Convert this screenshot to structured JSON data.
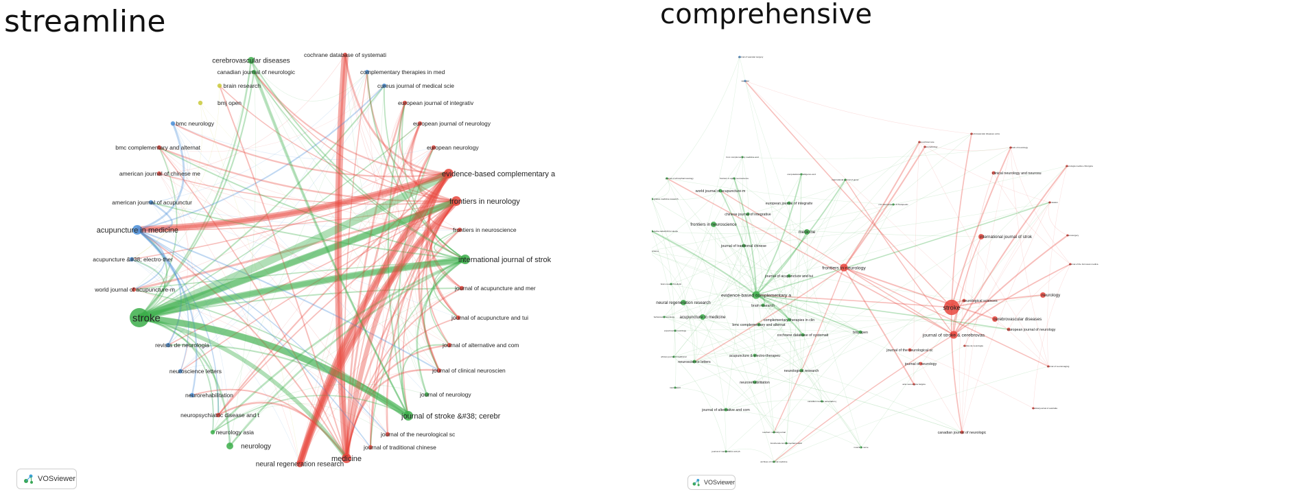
{
  "panels": [
    {
      "title": "streamline",
      "logo_text": "VOSviewer",
      "nodes": [
        {
          "label": "stroke",
          "cluster": "green",
          "size": "xl"
        },
        {
          "label": "cochrane database of systemati",
          "cluster": "red",
          "size": "s"
        },
        {
          "label": "complementary therapies in med",
          "cluster": "blue",
          "size": "s"
        },
        {
          "label": "cureus journal of medical scie",
          "cluster": "blue",
          "size": "s"
        },
        {
          "label": "european journal of integrativ",
          "cluster": "red",
          "size": "s"
        },
        {
          "label": "european journal of neurology",
          "cluster": "red",
          "size": "s"
        },
        {
          "label": "european neurology",
          "cluster": "red",
          "size": "s"
        },
        {
          "label": "evidence-based complementary a",
          "cluster": "red",
          "size": "l"
        },
        {
          "label": "frontiers in neurology",
          "cluster": "red",
          "size": "l"
        },
        {
          "label": "frontiers in neuroscience",
          "cluster": "red",
          "size": "s"
        },
        {
          "label": "international journal of strok",
          "cluster": "green",
          "size": "l"
        },
        {
          "label": "journal of acupuncture and mer",
          "cluster": "red",
          "size": "s"
        },
        {
          "label": "journal of acupuncture and tui",
          "cluster": "red",
          "size": "s"
        },
        {
          "label": "journal of alternative and com",
          "cluster": "red",
          "size": "s"
        },
        {
          "label": "journal of clinical neuroscien",
          "cluster": "red",
          "size": "s"
        },
        {
          "label": "journal of neurology",
          "cluster": "green",
          "size": "s"
        },
        {
          "label": "journal of stroke &#38; cerebr",
          "cluster": "green",
          "size": "l"
        },
        {
          "label": "journal of the neurological sc",
          "cluster": "red",
          "size": "s"
        },
        {
          "label": "journal of traditional chinese",
          "cluster": "red",
          "size": "s"
        },
        {
          "label": "medicine",
          "cluster": "red",
          "size": "l"
        },
        {
          "label": "neural regeneration research",
          "cluster": "red",
          "size": "m"
        },
        {
          "label": "neurology",
          "cluster": "green",
          "size": "m"
        },
        {
          "label": "neurology asia",
          "cluster": "green",
          "size": "s"
        },
        {
          "label": "neuropsychiatric disease and t",
          "cluster": "red",
          "size": "s"
        },
        {
          "label": "neurorehabilitation",
          "cluster": "blue",
          "size": "s"
        },
        {
          "label": "neuroscience letters",
          "cluster": "blue",
          "size": "s"
        },
        {
          "label": "revista de neurologia",
          "cluster": "blue",
          "size": "s"
        },
        {
          "label": "world journal of acupuncture-m",
          "cluster": "red",
          "size": "s"
        },
        {
          "label": "acupuncture &#38; electro-ther",
          "cluster": "blue",
          "size": "s"
        },
        {
          "label": "acupuncture in medicine",
          "cluster": "blue",
          "size": "l"
        },
        {
          "label": "american journal of acupunctur",
          "cluster": "blue",
          "size": "s"
        },
        {
          "label": "american journal of chinese me",
          "cluster": "red",
          "size": "s"
        },
        {
          "label": "bmc complementary and alternat",
          "cluster": "red",
          "size": "s"
        },
        {
          "label": "bmc neurology",
          "cluster": "blue",
          "size": "s"
        },
        {
          "label": "bmj open",
          "cluster": "yellow",
          "size": "s"
        },
        {
          "label": "brain research",
          "cluster": "yellow",
          "size": "s"
        },
        {
          "label": "canadian journal of neurologic",
          "cluster": "green",
          "size": "s"
        },
        {
          "label": "cerebrovascular diseases",
          "cluster": "green",
          "size": "m"
        }
      ]
    },
    {
      "title": "comprehensive",
      "logo_text": "VOSviewer",
      "nodes": [
        {
          "label": "journal of vascular surgery",
          "cluster": "blue",
          "size": "xs"
        },
        {
          "label": "vascular",
          "cluster": "blue",
          "size": "xs"
        },
        {
          "label": "stroke",
          "cluster": "red",
          "size": "xl"
        },
        {
          "label": "frontiers in neurology",
          "cluster": "red",
          "size": "l"
        },
        {
          "label": "international journal of strok",
          "cluster": "red",
          "size": "m"
        },
        {
          "label": "journal of stroke & cerebrovas",
          "cluster": "red",
          "size": "l"
        },
        {
          "label": "cerebrovascular diseases",
          "cluster": "red",
          "size": "m"
        },
        {
          "label": "neurology",
          "cluster": "red",
          "size": "m"
        },
        {
          "label": "clinical neurology and neurosu",
          "cluster": "red",
          "size": "s"
        },
        {
          "label": "european journal of neurology",
          "cluster": "red",
          "size": "s"
        },
        {
          "label": "journal of the neurological sc",
          "cluster": "red",
          "size": "s"
        },
        {
          "label": "journal of neurology",
          "cluster": "red",
          "size": "s"
        },
        {
          "label": "canadian journal of neurologic",
          "cluster": "red",
          "size": "s"
        },
        {
          "label": "neurological sciences",
          "cluster": "red",
          "size": "s"
        },
        {
          "label": "annals of neurology",
          "cluster": "red",
          "size": "xs"
        },
        {
          "label": "neurologia medico-chirurgica",
          "cluster": "red",
          "size": "xs"
        },
        {
          "label": "neurosurgery",
          "cluster": "red",
          "size": "xs"
        },
        {
          "label": "circulation",
          "cluster": "red",
          "size": "xs"
        },
        {
          "label": "cerebrovascular diseases extra",
          "cluster": "red",
          "size": "xs"
        },
        {
          "label": "neurocritical care",
          "cluster": "red",
          "size": "xs"
        },
        {
          "label": "neuroradiology",
          "cluster": "red",
          "size": "xs"
        },
        {
          "label": "journal of neuroimaging",
          "cluster": "red",
          "size": "xs"
        },
        {
          "label": "journal of the formosan medica",
          "cluster": "red",
          "size": "xs"
        },
        {
          "label": "medical journal of australia",
          "cluster": "red",
          "size": "xs"
        },
        {
          "label": "acta neurologica belgica",
          "cluster": "red",
          "size": "xs"
        },
        {
          "label": "revista de neurologia",
          "cluster": "red",
          "size": "xs"
        },
        {
          "label": "medicine",
          "cluster": "green",
          "size": "m"
        },
        {
          "label": "evidence-based complementary a",
          "cluster": "green",
          "size": "l"
        },
        {
          "label": "acupuncture in medicine",
          "cluster": "green",
          "size": "m"
        },
        {
          "label": "neural regeneration research",
          "cluster": "green",
          "size": "m"
        },
        {
          "label": "frontiers in neuroscience",
          "cluster": "green",
          "size": "m"
        },
        {
          "label": "journal of traditional chinese",
          "cluster": "green",
          "size": "s"
        },
        {
          "label": "chinese journal of integrative",
          "cluster": "green",
          "size": "s"
        },
        {
          "label": "european journal of integrativ",
          "cluster": "green",
          "size": "s"
        },
        {
          "label": "world journal of acupuncture-m",
          "cluster": "green",
          "size": "s"
        },
        {
          "label": "journal of acupuncture and tui",
          "cluster": "green",
          "size": "s"
        },
        {
          "label": "complementary therapies in clin",
          "cluster": "green",
          "size": "s"
        },
        {
          "label": "bmc complementary and alternat",
          "cluster": "green",
          "size": "s"
        },
        {
          "label": "cochrane database of systemati",
          "cluster": "green",
          "size": "s"
        },
        {
          "label": "acupuncture & electro-therapeu",
          "cluster": "green",
          "size": "s"
        },
        {
          "label": "neuroscience letters",
          "cluster": "green",
          "size": "s"
        },
        {
          "label": "neurorehabilitation",
          "cluster": "green",
          "size": "s"
        },
        {
          "label": "journal of alternative and com",
          "cluster": "green",
          "size": "s"
        },
        {
          "label": "neurological research",
          "cluster": "green",
          "size": "s"
        },
        {
          "label": "brain research",
          "cluster": "green",
          "size": "s"
        },
        {
          "label": "bmj open",
          "cluster": "green",
          "size": "s"
        },
        {
          "label": "bmc complementary medicine and",
          "cluster": "green",
          "size": "xs"
        },
        {
          "label": "journal of ethnopharmacology",
          "cluster": "green",
          "size": "xs"
        },
        {
          "label": "frontiers in aging neuroscience",
          "cluster": "green",
          "size": "xs"
        },
        {
          "label": "computational intelligence and",
          "cluster": "green",
          "size": "xs"
        },
        {
          "label": "international journal of gener",
          "cluster": "green",
          "size": "xs"
        },
        {
          "label": "cns neuroscience & therapeutic",
          "cluster": "green",
          "size": "xs"
        },
        {
          "label": "integrative medicine research",
          "cluster": "green",
          "size": "xs"
        },
        {
          "label": "deutsche zeitschrift fur akupu",
          "cluster": "green",
          "size": "xs"
        },
        {
          "label": "neuroreport",
          "cluster": "green",
          "size": "xs"
        },
        {
          "label": "experimental neurology",
          "cluster": "green",
          "size": "xs"
        },
        {
          "label": "behavioural neurology",
          "cluster": "green",
          "size": "xs"
        },
        {
          "label": "brain research bulletin",
          "cluster": "green",
          "size": "xs"
        },
        {
          "label": "neuroscience",
          "cluster": "green",
          "size": "xs"
        },
        {
          "label": "african journal of traditional",
          "cluster": "green",
          "size": "xs"
        },
        {
          "label": "journal of manipulative and ph",
          "cluster": "green",
          "size": "xs"
        },
        {
          "label": "archives of internal medicine",
          "cluster": "green",
          "size": "xs"
        },
        {
          "label": "southern medical journal",
          "cluster": "green",
          "size": "xs"
        },
        {
          "label": "canadian medical association j",
          "cluster": "green",
          "size": "xs"
        },
        {
          "label": "muscle & nerve",
          "cluster": "green",
          "size": "xs"
        },
        {
          "label": "forschende komplementarmedizin",
          "cluster": "green",
          "size": "xs"
        }
      ]
    }
  ]
}
